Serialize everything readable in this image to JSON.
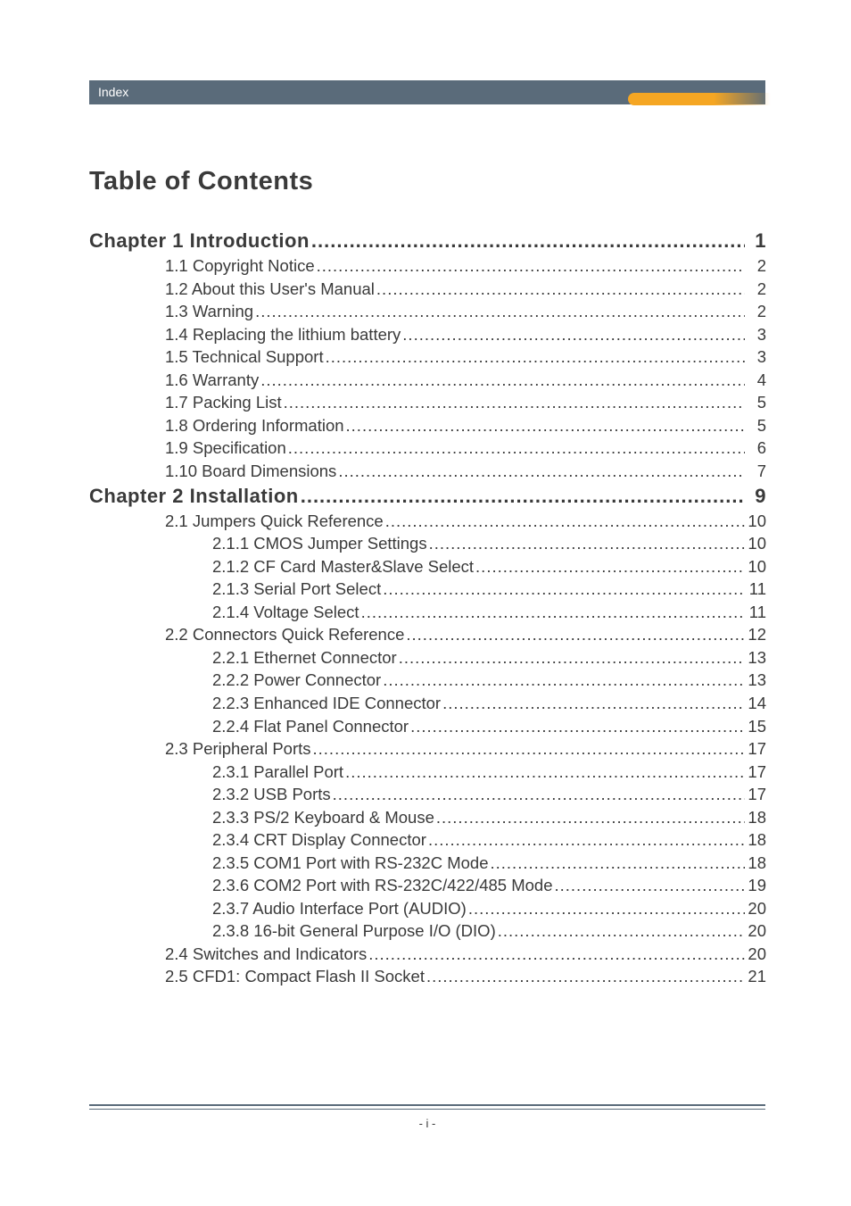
{
  "header": {
    "label": "Index"
  },
  "title": "Table of Contents",
  "dots_char": ".",
  "chapter1": {
    "label": "Chapter 1 Introduction",
    "page": "1"
  },
  "c1": {
    "s1": {
      "label": "1.1 Copyright Notice",
      "page": "2"
    },
    "s2": {
      "label": "1.2 About this User's Manual",
      "page": "2"
    },
    "s3": {
      "label": "1.3 Warning",
      "page": "2"
    },
    "s4": {
      "label": "1.4 Replacing the lithium battery",
      "page": "3"
    },
    "s5": {
      "label": "1.5 Technical Support",
      "page": "3"
    },
    "s6": {
      "label": "1.6 Warranty",
      "page": "4"
    },
    "s7": {
      "label": "1.7 Packing List",
      "page": "5"
    },
    "s8": {
      "label": "1.8 Ordering Information",
      "page": "5"
    },
    "s9": {
      "label": "1.9 Specification",
      "page": "6"
    },
    "s10": {
      "label": "1.10 Board Dimensions",
      "page": "7"
    }
  },
  "chapter2": {
    "label": "Chapter 2 Installation",
    "page": "9"
  },
  "c2": {
    "s1": {
      "label": "2.1 Jumpers Quick Reference",
      "page": "10"
    },
    "s1_1": {
      "label": "2.1.1 CMOS Jumper Settings",
      "page": "10"
    },
    "s1_2": {
      "label": "2.1.2 CF Card Master&Slave Select",
      "page": "10"
    },
    "s1_3": {
      "label": "2.1.3 Serial Port Select",
      "page": "11"
    },
    "s1_4": {
      "label": "2.1.4 Voltage Select",
      "page": "11"
    },
    "s2": {
      "label": "2.2 Connectors Quick Reference",
      "page": "12"
    },
    "s2_1": {
      "label": "2.2.1 Ethernet Connector",
      "page": "13"
    },
    "s2_2": {
      "label": "2.2.2 Power Connector",
      "page": "13"
    },
    "s2_3": {
      "label": "2.2.3 Enhanced IDE Connector",
      "page": "14"
    },
    "s2_4": {
      "label": "2.2.4 Flat Panel Connector",
      "page": "15"
    },
    "s3": {
      "label": "2.3 Peripheral Ports",
      "page": "17"
    },
    "s3_1": {
      "label": "2.3.1 Parallel Port",
      "page": "17"
    },
    "s3_2": {
      "label": "2.3.2 USB Ports",
      "page": "17"
    },
    "s3_3": {
      "label": "2.3.3 PS/2 Keyboard & Mouse",
      "page": "18"
    },
    "s3_4": {
      "label": "2.3.4 CRT Display Connector",
      "page": "18"
    },
    "s3_5": {
      "label": "2.3.5 COM1 Port with RS-232C Mode",
      "page": "18"
    },
    "s3_6": {
      "label": "2.3.6 COM2 Port with RS-232C/422/485 Mode",
      "page": "19"
    },
    "s3_7": {
      "label": "2.3.7 Audio Interface Port (AUDIO)",
      "page": "20"
    },
    "s3_8": {
      "label": "2.3.8 16-bit General Purpose I/O (DIO)",
      "page": "20"
    },
    "s4": {
      "label": "2.4 Switches and Indicators",
      "page": "20"
    },
    "s5": {
      "label": "2.5 CFD1: Compact Flash II Socket",
      "page": "21"
    }
  },
  "footer": {
    "text": "- i -"
  },
  "colors": {
    "header_bg": "#5a6b7a",
    "accent": "#f5a623",
    "text": "#3a3a3a",
    "bg": "#ffffff"
  },
  "typography": {
    "title_size": 29,
    "chapter_size": 22,
    "body_size": 18.5,
    "header_label_size": 14,
    "footer_size": 13
  }
}
